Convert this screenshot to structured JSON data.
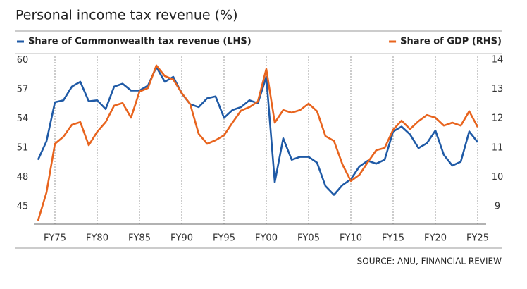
{
  "chart_data": {
    "type": "line",
    "title": "Personal income tax revenue (%)",
    "source": "SOURCE: ANU, FINANCIAL REVIEW",
    "x": [
      1973,
      1974,
      1975,
      1976,
      1977,
      1978,
      1979,
      1980,
      1981,
      1982,
      1983,
      1984,
      1985,
      1986,
      1987,
      1988,
      1989,
      1990,
      1991,
      1992,
      1993,
      1994,
      1995,
      1996,
      1997,
      1998,
      1999,
      2000,
      2001,
      2002,
      2003,
      2004,
      2005,
      2006,
      2007,
      2008,
      2009,
      2010,
      2011,
      2012,
      2013,
      2014,
      2015,
      2016,
      2017,
      2018,
      2019,
      2020,
      2021,
      2022,
      2023,
      2024,
      2025
    ],
    "series": [
      {
        "name": "Share of Commonwealth tax revenue (LHS)",
        "color": "#1f5aa6",
        "axis": "y",
        "values": [
          49.8,
          51.7,
          55.7,
          55.9,
          57.3,
          57.8,
          55.8,
          55.9,
          55.0,
          57.3,
          57.6,
          56.9,
          56.9,
          57.4,
          59.3,
          57.8,
          58.3,
          56.6,
          55.5,
          55.2,
          56.1,
          56.3,
          54.1,
          54.9,
          55.2,
          55.9,
          55.6,
          58.3,
          47.5,
          52.0,
          49.8,
          50.1,
          50.1,
          49.5,
          47.1,
          46.2,
          47.2,
          47.8,
          49.1,
          49.7,
          49.4,
          49.8,
          52.7,
          53.2,
          52.4,
          51.0,
          51.5,
          52.8,
          50.3,
          49.2,
          49.6,
          52.7,
          51.6
        ]
      },
      {
        "name": "Share of GDP (RHS)",
        "color": "#e8641e",
        "axis": "y2",
        "values": [
          8.52,
          9.48,
          11.14,
          11.38,
          11.79,
          11.88,
          11.09,
          11.55,
          11.88,
          12.44,
          12.53,
          12.03,
          12.92,
          13.04,
          13.81,
          13.45,
          13.33,
          12.87,
          12.49,
          11.48,
          11.14,
          11.26,
          11.43,
          11.86,
          12.27,
          12.39,
          12.58,
          13.69,
          11.86,
          12.29,
          12.2,
          12.29,
          12.51,
          12.25,
          11.4,
          11.24,
          10.44,
          9.87,
          10.08,
          10.51,
          10.92,
          11.0,
          11.62,
          11.93,
          11.64,
          11.91,
          12.12,
          12.03,
          11.76,
          11.86,
          11.76,
          12.25,
          11.71
        ]
      }
    ],
    "xlim": [
      1972.5,
      2026
    ],
    "xticks": [
      {
        "value": 1975,
        "label": "FY75"
      },
      {
        "value": 1980,
        "label": "FY80"
      },
      {
        "value": 1985,
        "label": "FY85"
      },
      {
        "value": 1990,
        "label": "FY90"
      },
      {
        "value": 1995,
        "label": "FY95"
      },
      {
        "value": 2000,
        "label": "FY00"
      },
      {
        "value": 2005,
        "label": "FY05"
      },
      {
        "value": 2010,
        "label": "FY10"
      },
      {
        "value": 2015,
        "label": "FY15"
      },
      {
        "value": 2020,
        "label": "FY20"
      },
      {
        "value": 2025,
        "label": "FY25"
      }
    ],
    "ylim": [
      43.2,
      60.4
    ],
    "yticks": [
      45,
      48,
      51,
      54,
      57,
      60
    ],
    "y2lim": [
      8.4,
      14.12
    ],
    "y2ticks": [
      9,
      10,
      11,
      12,
      13,
      14
    ],
    "grid": "x"
  }
}
